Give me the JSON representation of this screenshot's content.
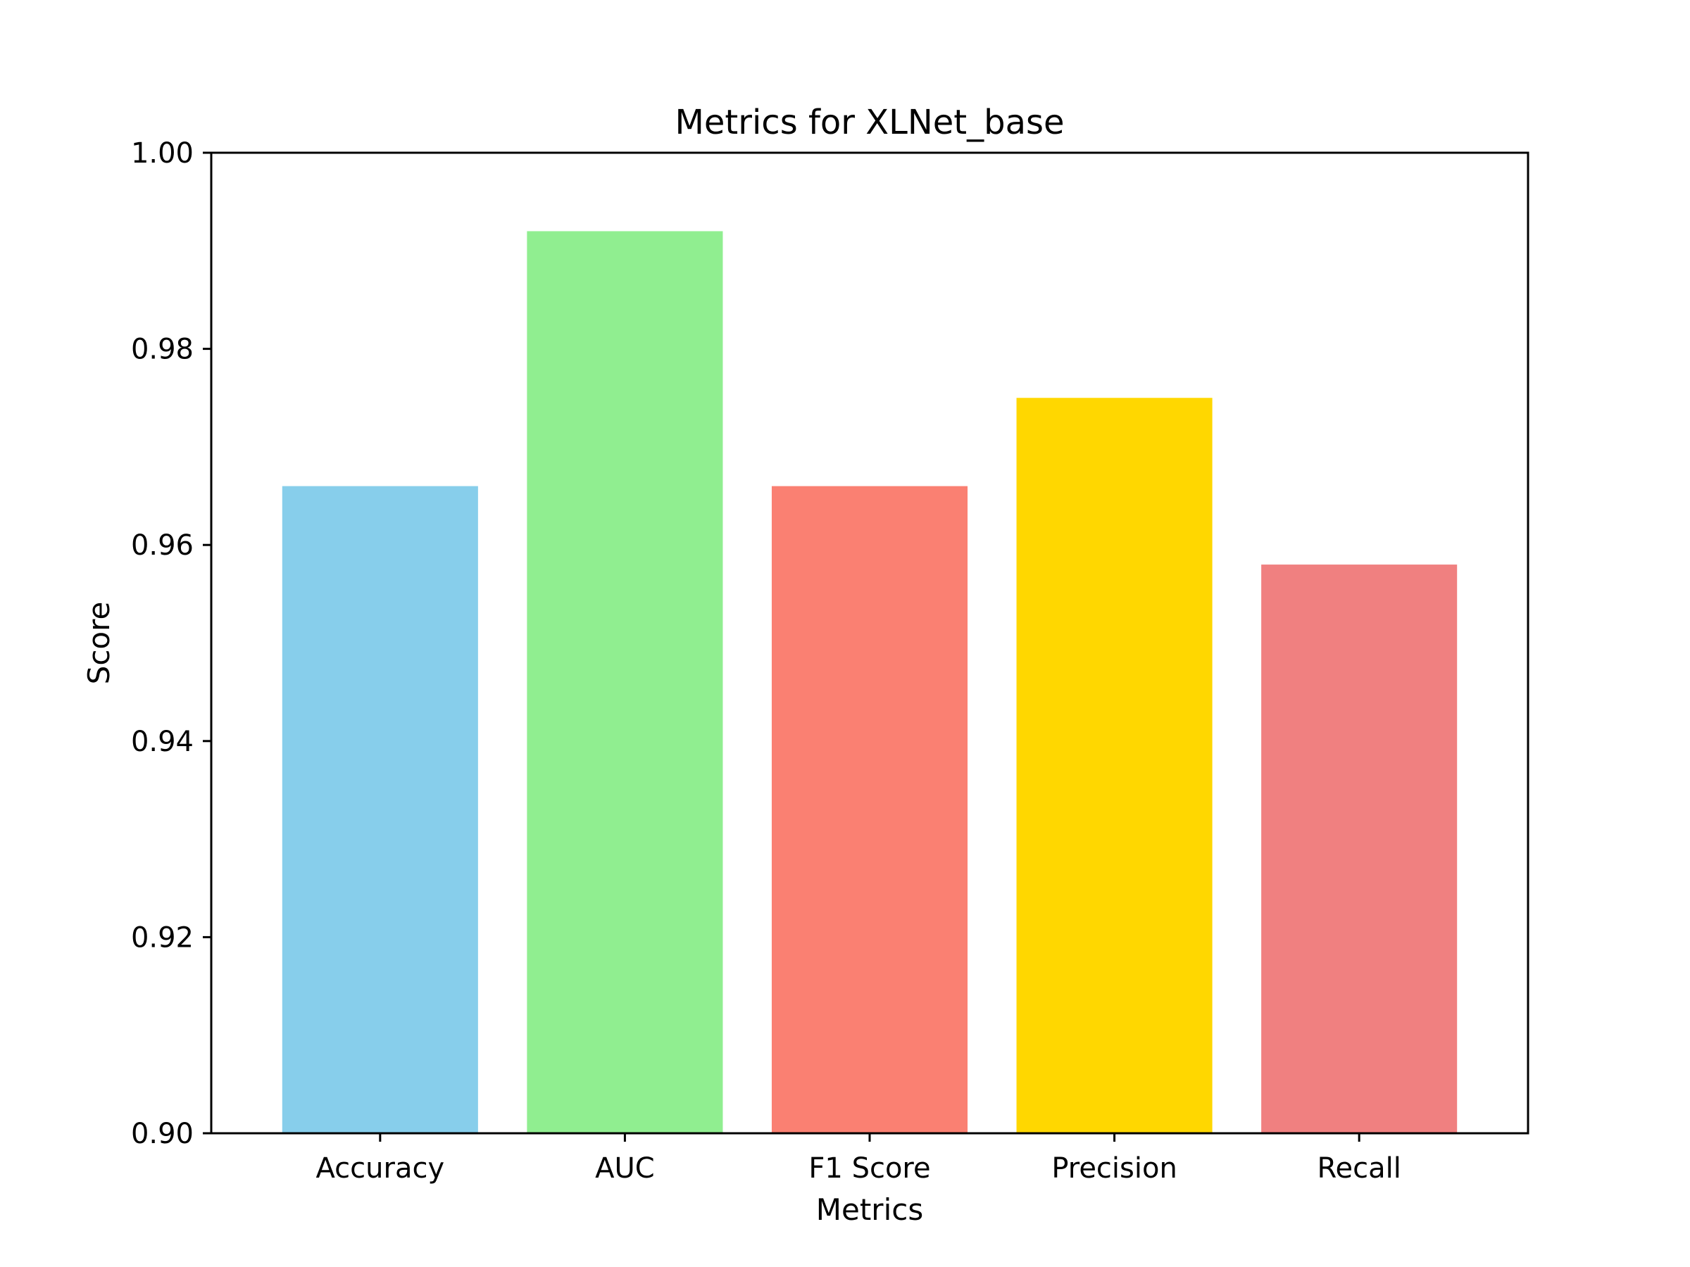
{
  "chart_data": {
    "type": "bar",
    "title": "Metrics for XLNet_base",
    "xlabel": "Metrics",
    "ylabel": "Score",
    "categories": [
      "Accuracy",
      "AUC",
      "F1 Score",
      "Precision",
      "Recall"
    ],
    "values": [
      0.966,
      0.992,
      0.966,
      0.975,
      0.958
    ],
    "colors": [
      "#87ceeb",
      "#90ee90",
      "#fa8072",
      "#ffd700",
      "#f08080"
    ],
    "ylim": [
      0.9,
      1.0
    ],
    "yticks": [
      "0.90",
      "0.92",
      "0.94",
      "0.96",
      "0.98",
      "1.00"
    ],
    "grid": false,
    "legend": "none"
  }
}
